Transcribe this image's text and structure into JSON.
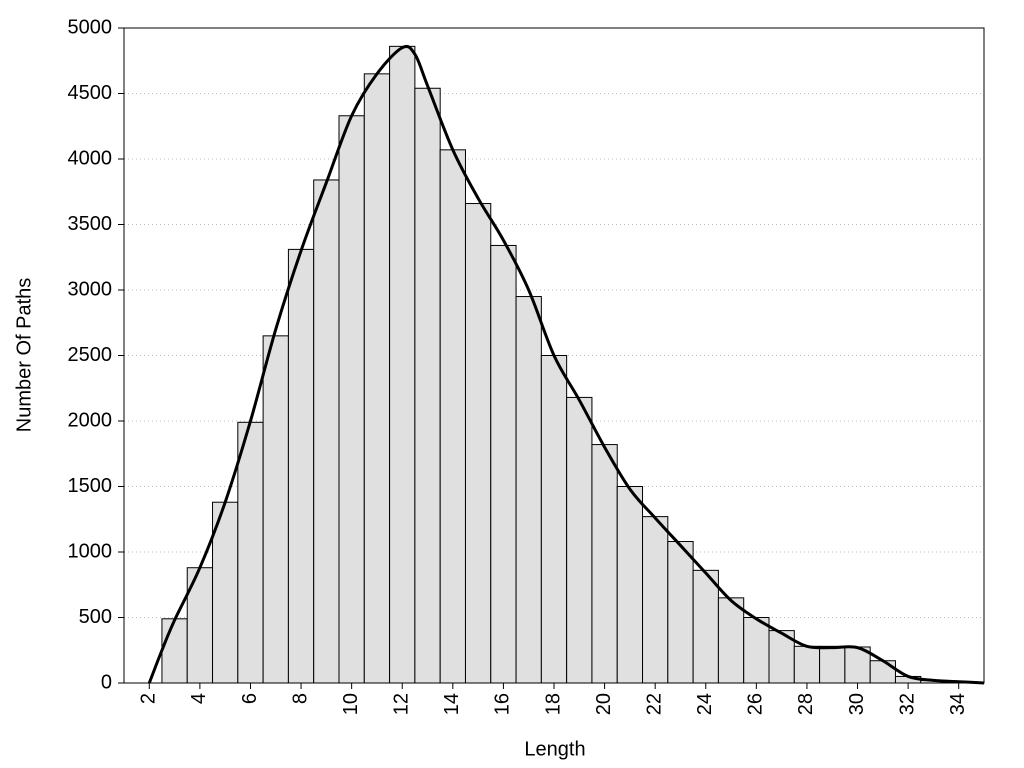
{
  "chart_data": {
    "type": "histogram",
    "xlabel": "Length",
    "ylabel": "Number Of Paths",
    "bins": [
      2.5,
      3.5,
      4.5,
      5.5,
      6.5,
      7.5,
      8.5,
      9.5,
      10.5,
      11.5,
      12.5,
      13.5,
      14.5,
      15.5,
      16.5,
      17.5,
      18.5,
      19.5,
      20.5,
      21.5,
      22.5,
      23.5,
      24.5,
      25.5,
      26.5,
      27.5,
      28.5,
      29.5,
      30.5,
      31.5,
      32.5,
      33.5,
      34.5
    ],
    "counts": [
      490,
      880,
      1380,
      1990,
      2650,
      3310,
      3840,
      4330,
      4650,
      4860,
      4540,
      4070,
      3660,
      3340,
      2950,
      2500,
      2180,
      1820,
      1500,
      1270,
      1080,
      860,
      650,
      500,
      400,
      280,
      280,
      275,
      170,
      50,
      20,
      10
    ],
    "color": "#e0e0e0",
    "edgecolor": "#000000",
    "curve": {
      "x": [
        2,
        2.5,
        3,
        4,
        5,
        6,
        7,
        8,
        9,
        10,
        11,
        12,
        12.5,
        13,
        14,
        15,
        16,
        17,
        18,
        19,
        20,
        21,
        22,
        23,
        24,
        25,
        26,
        27,
        28,
        29,
        30,
        31,
        32,
        33,
        34,
        35
      ],
      "values": [
        0,
        250,
        480,
        880,
        1380,
        2000,
        2700,
        3300,
        3820,
        4330,
        4650,
        4850,
        4800,
        4560,
        4070,
        3700,
        3380,
        3000,
        2500,
        2160,
        1800,
        1480,
        1260,
        1050,
        840,
        630,
        490,
        380,
        280,
        270,
        270,
        170,
        50,
        20,
        10,
        0
      ],
      "color": "#000000"
    },
    "xlim": [
      1,
      35
    ],
    "ylim": [
      0,
      5000
    ],
    "xticks": [
      2,
      4,
      6,
      8,
      10,
      12,
      14,
      16,
      18,
      20,
      22,
      24,
      26,
      28,
      30,
      32,
      34
    ],
    "yticks": [
      0,
      500,
      1000,
      1500,
      2000,
      2500,
      3000,
      3500,
      4000,
      4500,
      5000
    ],
    "grid": true
  }
}
